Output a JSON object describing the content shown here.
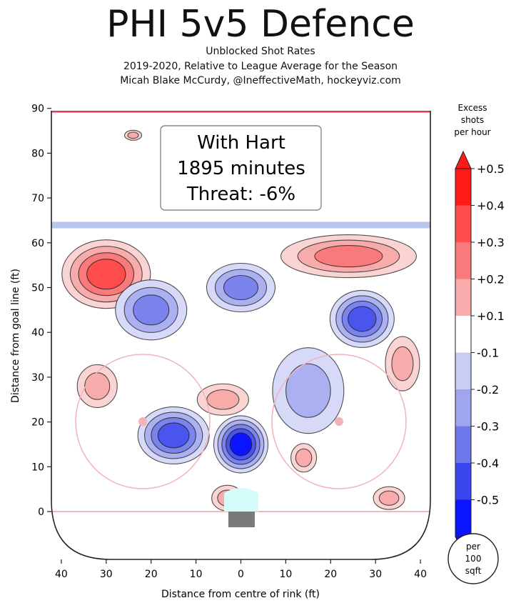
{
  "title": "PHI 5v5 Defence",
  "subtitle_lines": [
    "Unblocked Shot Rates",
    "2019-2020, Relative to League Average for the Season",
    "Micah Blake McCurdy, @IneffectiveMath, hockeyviz.com"
  ],
  "chart_data": {
    "type": "heatmap",
    "xlabel": "Distance from centre of rink (ft)",
    "ylabel": "Distance from goal line (ft)",
    "xlim": [
      42,
      -42
    ],
    "ylim": [
      -10,
      90
    ],
    "xticks": [
      40,
      30,
      20,
      10,
      0,
      10,
      20,
      30,
      40
    ],
    "yticks": [
      0,
      10,
      20,
      30,
      40,
      50,
      60,
      70,
      80,
      90
    ],
    "annotation": [
      "With Hart",
      "1895 minutes",
      "Threat: -6%"
    ],
    "colorbar": {
      "title": [
        "Excess",
        "shots",
        "per hour"
      ],
      "tick_labels": [
        "+0.5",
        "+0.4",
        "+0.3",
        "+0.2",
        "+0.1",
        "-0.1",
        "-0.2",
        "-0.3",
        "-0.4",
        "-0.5"
      ],
      "levels": [
        0.5,
        0.4,
        0.3,
        0.2,
        0.1,
        -0.1,
        -0.2,
        -0.3,
        -0.4,
        -0.5
      ],
      "colors": [
        "#ff1a1a",
        "#ff4d4d",
        "#f97a7a",
        "#f8abab",
        "#ffffff",
        "#c9cdf5",
        "#9fa6ee",
        "#6f78ea",
        "#3a46ee",
        "#0a14ff"
      ],
      "unit_label": [
        "per",
        "100",
        "sqft"
      ]
    },
    "regions": [
      {
        "name": "top-left excess zone",
        "x": 30,
        "y": 53,
        "peak": 0.4
      },
      {
        "name": "top-right excess zone",
        "x": -24,
        "y": 57,
        "peak": 0.25
      },
      {
        "name": "left point",
        "x": 24,
        "y": 84,
        "peak": 0.15
      },
      {
        "name": "left high-slot deficit",
        "x": 20,
        "y": 45,
        "peak": -0.3
      },
      {
        "name": "centre high deficit",
        "x": 0,
        "y": 50,
        "peak": -0.3
      },
      {
        "name": "right high deficit",
        "x": -27,
        "y": 43,
        "peak": -0.35
      },
      {
        "name": "left low deficit",
        "x": 15,
        "y": 17,
        "peak": -0.35
      },
      {
        "name": "slot deficit",
        "x": 0,
        "y": 15,
        "peak": -0.45
      },
      {
        "name": "right circle deficit",
        "x": -15,
        "y": 27,
        "peak": -0.2
      },
      {
        "name": "small slot excess",
        "x": 4,
        "y": 25,
        "peak": 0.15
      },
      {
        "name": "left boards excess",
        "x": 32,
        "y": 28,
        "peak": 0.15
      },
      {
        "name": "right boards excess",
        "x": -36,
        "y": 33,
        "peak": 0.15
      },
      {
        "name": "right low excess",
        "x": -14,
        "y": 12,
        "peak": 0.15
      },
      {
        "name": "right corner excess",
        "x": -33,
        "y": 3,
        "peak": 0.2
      },
      {
        "name": "crease excess",
        "x": 3,
        "y": 3,
        "peak": 0.15
      }
    ]
  }
}
